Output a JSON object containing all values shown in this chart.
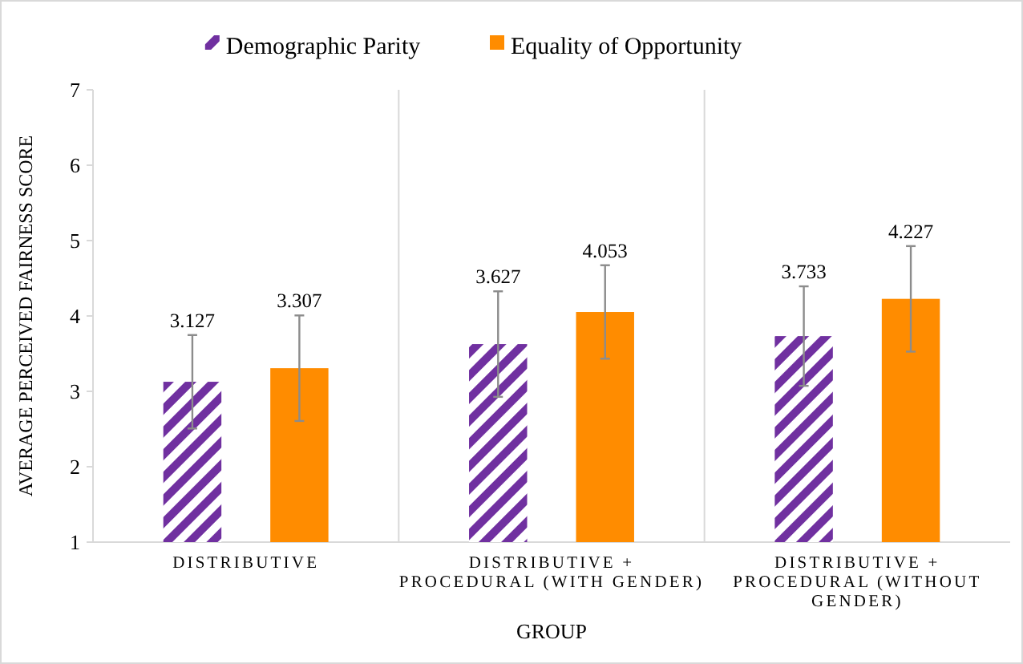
{
  "chart_data": {
    "type": "bar",
    "xlabel": "GROUP",
    "ylabel": "AVERAGE  PERCEIVED FAIRNESS SCORE",
    "categories": [
      "DISTRIBUTIVE",
      "DISTRIBUTIVE + PROCEDURAL (WITH GENDER)",
      "DISTRIBUTIVE + PROCEDURAL (WITHOUT GENDER)"
    ],
    "series": [
      {
        "name": "Demographic Parity",
        "color": "#7030a0",
        "values": [
          3.127,
          3.627,
          3.733
        ],
        "errors": [
          0.62,
          0.7,
          0.66
        ]
      },
      {
        "name": "Equality of Opportunity",
        "color": "#ff8c00",
        "values": [
          3.307,
          4.053,
          4.227
        ],
        "errors": [
          0.7,
          0.62,
          0.7
        ]
      }
    ],
    "ylim": [
      1,
      7
    ],
    "yticks": [
      1,
      2,
      3,
      4,
      5,
      6,
      7
    ],
    "grid": false,
    "legend": "top",
    "data_labels": true
  }
}
